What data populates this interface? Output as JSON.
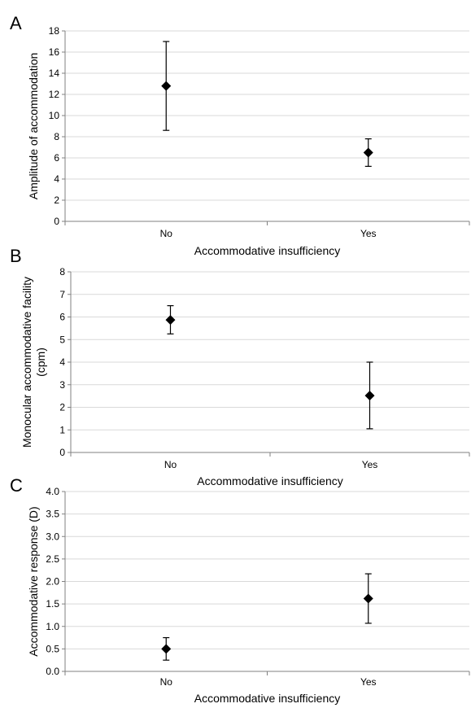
{
  "chart_data": [
    {
      "panel_label": "A",
      "type": "scatter",
      "xlabel": "Accommodative insufficiency",
      "ylabel": "Amplitude of accommodation",
      "categories": [
        "No",
        "Yes"
      ],
      "values": [
        12.8,
        6.5
      ],
      "error_low": [
        8.6,
        5.2
      ],
      "error_high": [
        17.0,
        7.8
      ],
      "ylim": [
        0,
        18
      ],
      "yticks": [
        0,
        2,
        4,
        6,
        8,
        10,
        12,
        14,
        16,
        18
      ],
      "ytick_labels": [
        "0",
        "2",
        "4",
        "6",
        "8",
        "10",
        "12",
        "14",
        "16",
        "18"
      ],
      "grid": true,
      "marker_color": "#000000"
    },
    {
      "panel_label": "B",
      "type": "scatter",
      "xlabel": "Accommodative insufficiency",
      "ylabel": "Monocular accommodative facility (cpm)",
      "ylabel_lines": [
        "Monocular accommodative facility",
        "(cpm)"
      ],
      "categories": [
        "No",
        "Yes"
      ],
      "values": [
        5.87,
        2.52
      ],
      "error_low": [
        5.25,
        1.05
      ],
      "error_high": [
        6.5,
        4.0
      ],
      "ylim": [
        0,
        8
      ],
      "yticks": [
        0,
        1,
        2,
        3,
        4,
        5,
        6,
        7,
        8
      ],
      "ytick_labels": [
        "0",
        "1",
        "2",
        "3",
        "4",
        "5",
        "6",
        "7",
        "8"
      ],
      "grid": true,
      "marker_color": "#000000"
    },
    {
      "panel_label": "C",
      "type": "scatter",
      "xlabel": "Accommodative insufficiency",
      "ylabel": "Accommodative response (D)",
      "categories": [
        "No",
        "Yes"
      ],
      "values": [
        0.5,
        1.62
      ],
      "error_low": [
        0.25,
        1.07
      ],
      "error_high": [
        0.75,
        2.17
      ],
      "ylim": [
        0,
        4
      ],
      "yticks": [
        0,
        0.5,
        1,
        1.5,
        2,
        2.5,
        3,
        3.5,
        4
      ],
      "ytick_labels": [
        "0.0",
        "0.5",
        "1.0",
        "1.5",
        "2.0",
        "2.5",
        "3.0",
        "3.5",
        "4.0"
      ],
      "grid": true,
      "marker_color": "#000000"
    }
  ]
}
